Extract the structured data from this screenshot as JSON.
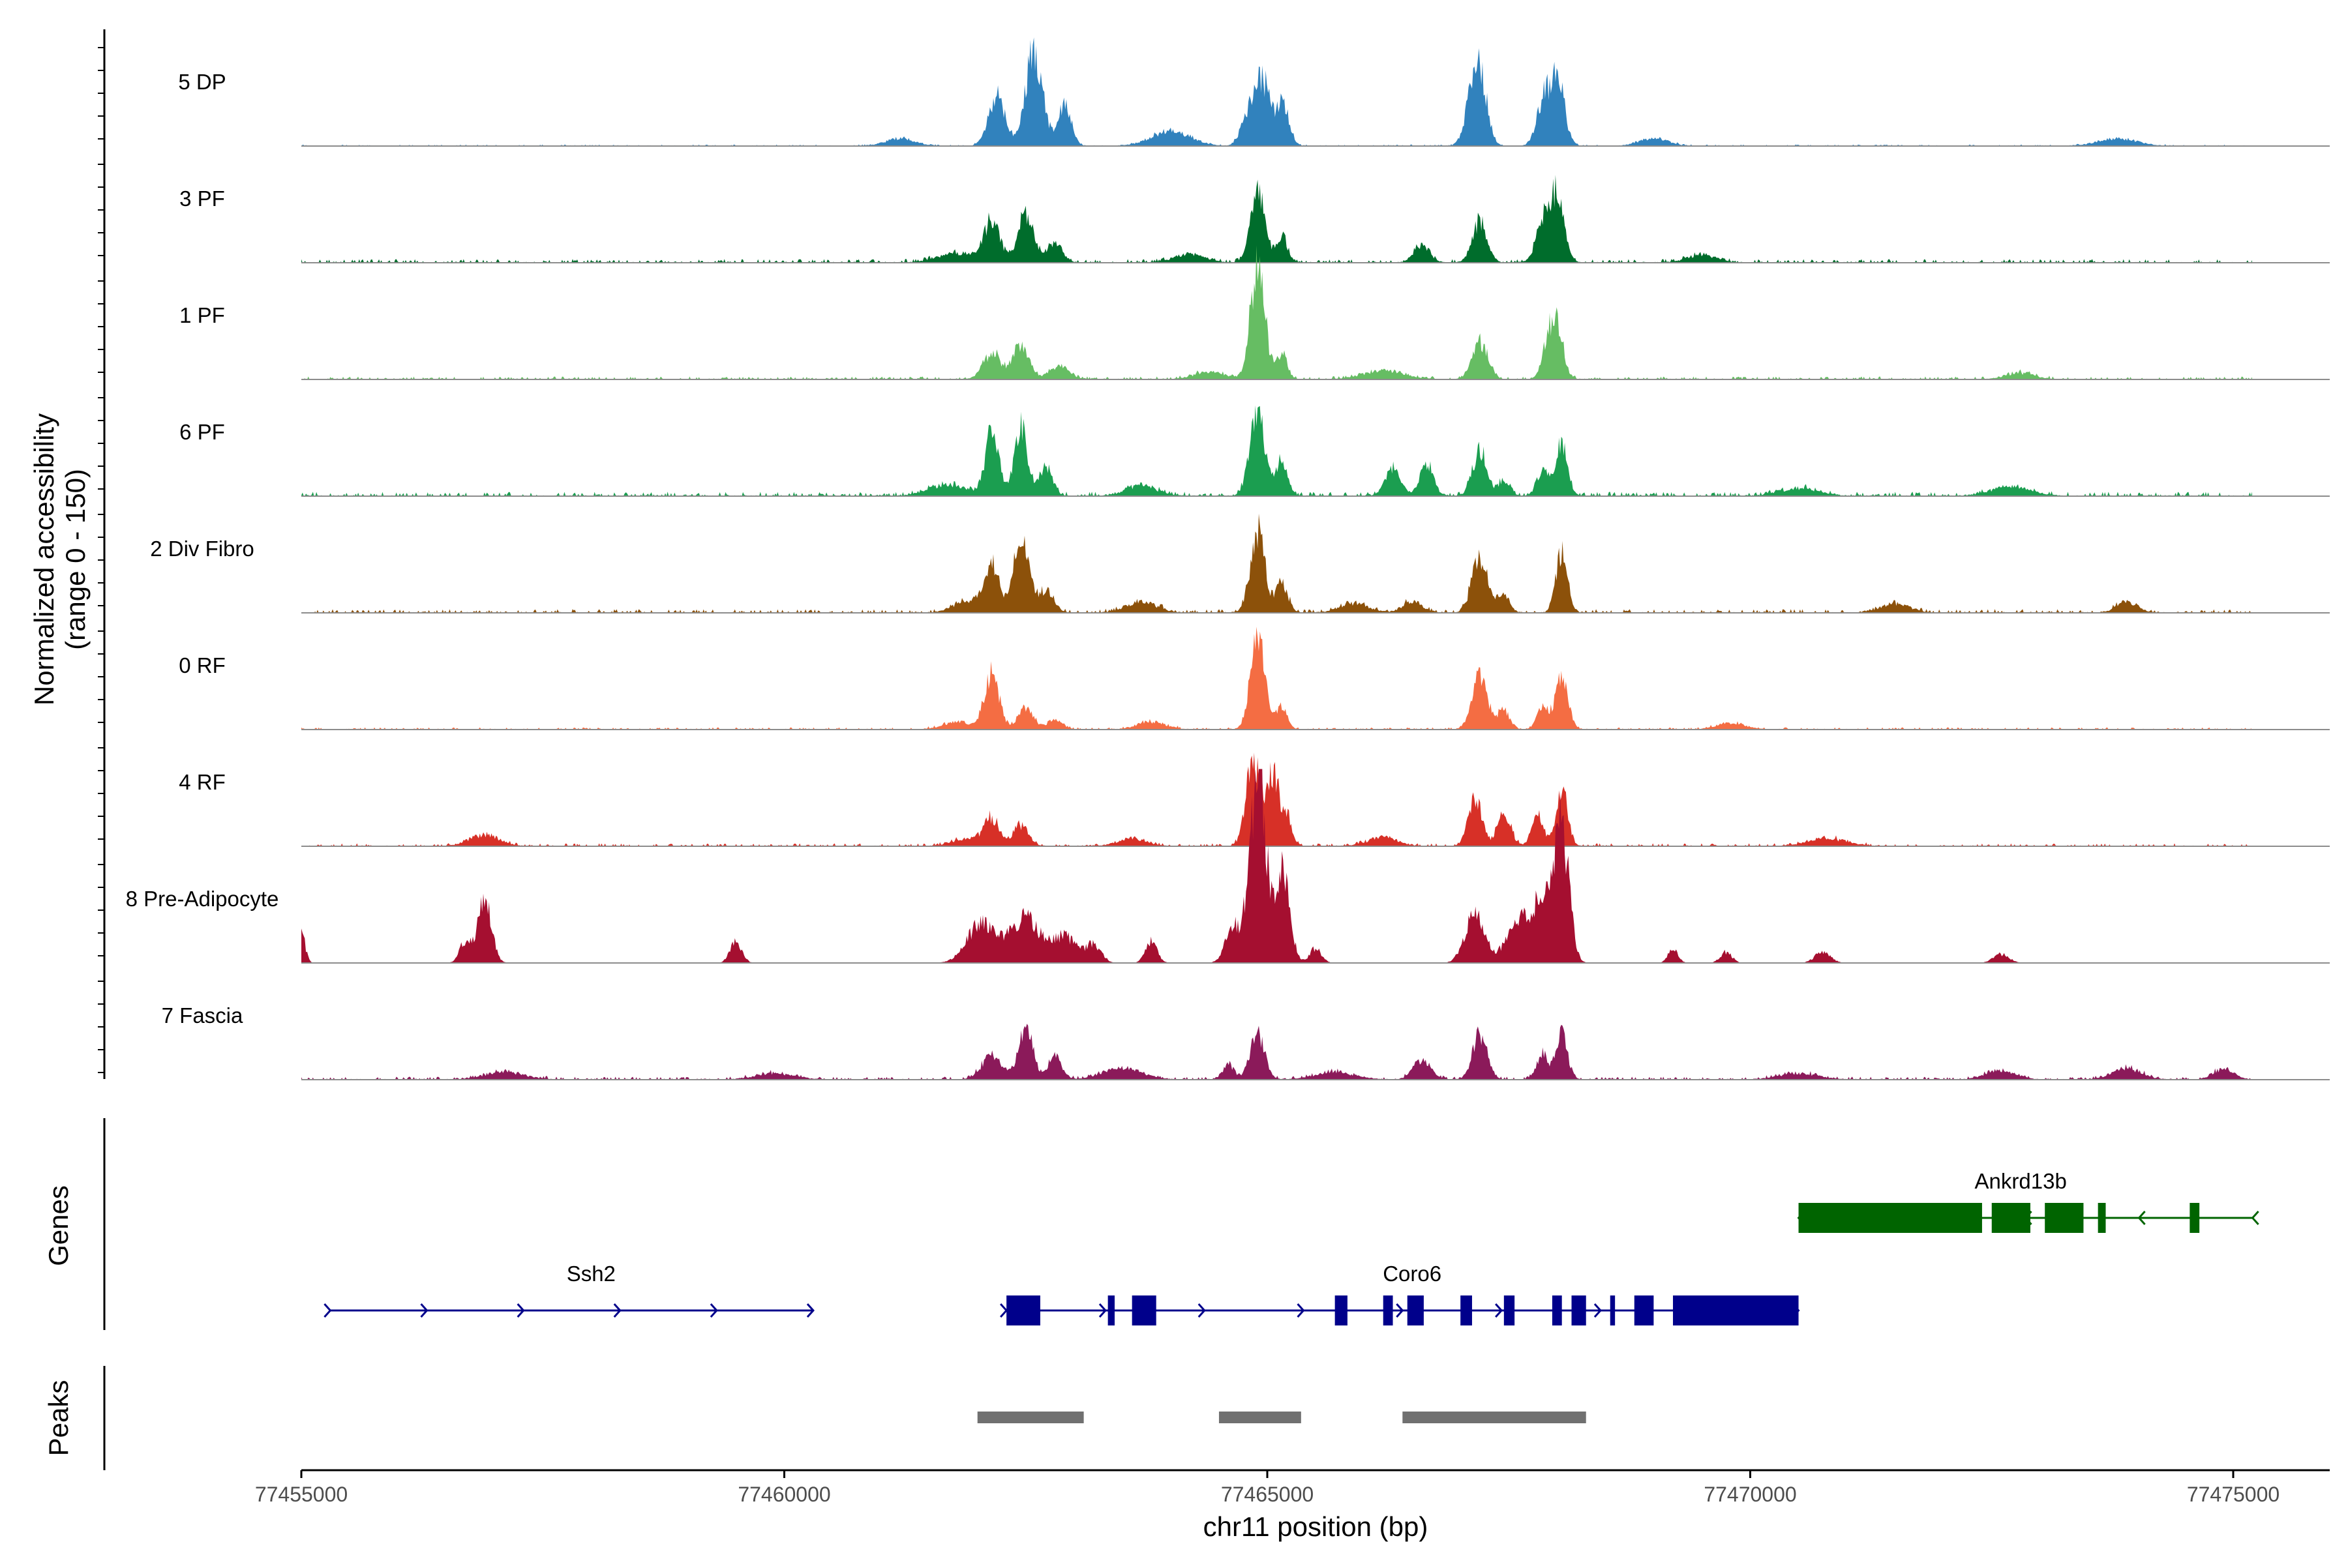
{
  "colors": {
    "baseline": "#8c8c8c",
    "axis": "#000000",
    "tick_text": "#4d4d4d",
    "gene_plus": "#00008b",
    "gene_minus": "#006400",
    "peak": "#707070"
  },
  "chart_data": {
    "type": "area",
    "title": "",
    "xlabel": "chr11 position (bp)",
    "ylabel": "Normalized accessibility\n(range 0 - 150)",
    "ylabel_line1": "Normalized accessibility",
    "ylabel_line2": "(range 0 - 150)",
    "ylim": [
      0,
      150
    ],
    "xlim": [
      77455000,
      77475000
    ],
    "x_ticks": [
      77455000,
      77460000,
      77465000,
      77470000,
      77475000
    ],
    "x_tick_labels": [
      "77455000",
      "77460000",
      "77465000",
      "77470000",
      "77475000"
    ],
    "data_start": 77455000,
    "data_end": 77475200,
    "tracks": [
      {
        "name": "5 DP",
        "color": "#3182bd",
        "peaks": [
          [
            77462200,
            68,
            85
          ],
          [
            77462550,
            100,
            75
          ],
          [
            77462650,
            60,
            65
          ],
          [
            77462900,
            55,
            70
          ],
          [
            77464800,
            45,
            70
          ],
          [
            77464950,
            85,
            70
          ],
          [
            77465150,
            60,
            70
          ],
          [
            77467200,
            95,
            75
          ],
          [
            77467100,
            40,
            70
          ],
          [
            77467850,
            55,
            70
          ],
          [
            77468000,
            90,
            75
          ]
        ],
        "noise": 2,
        "bumps": [
          [
            77464000,
            20,
            200
          ],
          [
            77461200,
            10,
            150
          ],
          [
            77473800,
            10,
            200
          ],
          [
            77469000,
            10,
            150
          ]
        ]
      },
      {
        "name": "3 PF",
        "color": "#006d2c",
        "peaks": [
          [
            77462150,
            55,
            80
          ],
          [
            77462500,
            65,
            85
          ],
          [
            77462800,
            25,
            80
          ],
          [
            77464900,
            95,
            75
          ],
          [
            77465150,
            35,
            60
          ],
          [
            77466600,
            25,
            80
          ],
          [
            77467200,
            55,
            75
          ],
          [
            77467850,
            55,
            70
          ],
          [
            77468000,
            90,
            70
          ]
        ],
        "noise": 5,
        "bumps": [
          [
            77461800,
            12,
            200
          ],
          [
            77464200,
            12,
            150
          ],
          [
            77469500,
            10,
            150
          ]
        ]
      },
      {
        "name": "1 PF",
        "color": "#66bd63",
        "peaks": [
          [
            77462150,
            35,
            90
          ],
          [
            77462450,
            45,
            85
          ],
          [
            77462850,
            18,
            100
          ],
          [
            77464900,
            150,
            75
          ],
          [
            77465150,
            35,
            55
          ],
          [
            77467200,
            50,
            80
          ],
          [
            77467900,
            40,
            60
          ],
          [
            77468000,
            70,
            65
          ]
        ],
        "noise": 4,
        "bumps": [
          [
            77466200,
            12,
            200
          ],
          [
            77464400,
            10,
            150
          ],
          [
            77472800,
            8,
            150
          ]
        ]
      },
      {
        "name": "6 PF",
        "color": "#1b9e50",
        "peaks": [
          [
            77462150,
            85,
            70
          ],
          [
            77462450,
            100,
            65
          ],
          [
            77462700,
            40,
            70
          ],
          [
            77464900,
            110,
            80
          ],
          [
            77465150,
            45,
            60
          ],
          [
            77466300,
            35,
            80
          ],
          [
            77466650,
            40,
            70
          ],
          [
            77467200,
            60,
            75
          ],
          [
            77467450,
            20,
            60
          ],
          [
            77467850,
            35,
            60
          ],
          [
            77468050,
            70,
            60
          ]
        ],
        "noise": 6,
        "bumps": [
          [
            77461700,
            15,
            200
          ],
          [
            77463700,
            15,
            150
          ],
          [
            77470500,
            10,
            200
          ],
          [
            77472700,
            12,
            200
          ]
        ]
      },
      {
        "name": "2 Div Fibro",
        "color": "#8c510a",
        "peaks": [
          [
            77462150,
            60,
            80
          ],
          [
            77462450,
            105,
            75
          ],
          [
            77462700,
            30,
            80
          ],
          [
            77464900,
            110,
            75
          ],
          [
            77465150,
            40,
            60
          ],
          [
            77466500,
            15,
            100
          ],
          [
            77467200,
            75,
            80
          ],
          [
            77467450,
            25,
            60
          ],
          [
            77468050,
            80,
            60
          ]
        ],
        "noise": 5,
        "bumps": [
          [
            77461900,
            15,
            150
          ],
          [
            77463700,
            15,
            150
          ],
          [
            77465900,
            12,
            150
          ],
          [
            77471500,
            12,
            150
          ],
          [
            77473900,
            15,
            100
          ]
        ]
      },
      {
        "name": "0 RF",
        "color": "#f46d43",
        "peaks": [
          [
            77462150,
            75,
            75
          ],
          [
            77462500,
            30,
            80
          ],
          [
            77462800,
            12,
            80
          ],
          [
            77464900,
            125,
            75
          ],
          [
            77465150,
            30,
            55
          ],
          [
            77467200,
            75,
            80
          ],
          [
            77467450,
            25,
            60
          ],
          [
            77467850,
            30,
            60
          ],
          [
            77468050,
            75,
            65
          ]
        ],
        "noise": 3,
        "bumps": [
          [
            77461800,
            10,
            150
          ],
          [
            77463800,
            10,
            150
          ],
          [
            77469800,
            8,
            150
          ]
        ]
      },
      {
        "name": "4 RF",
        "color": "#d73027",
        "peaks": [
          [
            77462150,
            35,
            80
          ],
          [
            77462450,
            28,
            80
          ],
          [
            77464850,
            120,
            70
          ],
          [
            77465050,
            100,
            65
          ],
          [
            77465200,
            40,
            55
          ],
          [
            77467150,
            65,
            70
          ],
          [
            77467450,
            45,
            70
          ],
          [
            77467800,
            40,
            60
          ],
          [
            77468050,
            80,
            60
          ]
        ],
        "noise": 4,
        "bumps": [
          [
            77456900,
            15,
            150
          ],
          [
            77461900,
            10,
            150
          ],
          [
            77463600,
            10,
            150
          ],
          [
            77466200,
            12,
            150
          ],
          [
            77470800,
            10,
            200
          ]
        ]
      },
      {
        "name": "8 Pre-Adipocyte",
        "color": "#a50f30",
        "peaks": [
          [
            77455000,
            40,
            40
          ],
          [
            77456900,
            85,
            70
          ],
          [
            77456700,
            30,
            60
          ],
          [
            77459500,
            30,
            60
          ],
          [
            77462050,
            55,
            150
          ],
          [
            77462500,
            60,
            150
          ],
          [
            77462900,
            35,
            120
          ],
          [
            77463200,
            25,
            80
          ],
          [
            77463800,
            30,
            60
          ],
          [
            77464650,
            50,
            80
          ],
          [
            77464900,
            260,
            80
          ],
          [
            77465150,
            120,
            80
          ],
          [
            77465500,
            20,
            60
          ],
          [
            77467150,
            70,
            100
          ],
          [
            77467600,
            60,
            120
          ],
          [
            77467850,
            85,
            90
          ],
          [
            77468050,
            180,
            75
          ],
          [
            77469200,
            20,
            50
          ],
          [
            77469750,
            15,
            60
          ],
          [
            77470750,
            15,
            80
          ],
          [
            77472600,
            12,
            80
          ]
        ],
        "noise": 0,
        "bumps": []
      },
      {
        "name": "7 Fascia",
        "color": "#8b1a5a",
        "peaks": [
          [
            77462150,
            35,
            100
          ],
          [
            77462500,
            70,
            75
          ],
          [
            77462800,
            30,
            70
          ],
          [
            77464900,
            60,
            75
          ],
          [
            77464600,
            20,
            60
          ],
          [
            77466600,
            25,
            90
          ],
          [
            77467200,
            60,
            75
          ],
          [
            77467850,
            35,
            60
          ],
          [
            77468050,
            60,
            60
          ]
        ],
        "noise": 4,
        "bumps": [
          [
            77457100,
            10,
            200
          ],
          [
            77459900,
            8,
            200
          ],
          [
            77463500,
            15,
            200
          ],
          [
            77465700,
            10,
            200
          ],
          [
            77470500,
            8,
            200
          ],
          [
            77472600,
            12,
            150
          ],
          [
            77473900,
            15,
            150
          ],
          [
            77474900,
            15,
            100
          ]
        ]
      }
    ],
    "genes": {
      "label": "Genes",
      "items": [
        {
          "name": "Ssh2",
          "strand": "+",
          "color": "#00008b",
          "start": 77455300,
          "end": 77460300,
          "row": 2,
          "label_pos": 77458000,
          "exons": []
        },
        {
          "name": "Coro6",
          "strand": "+",
          "color": "#00008b",
          "start": 77462300,
          "end": 77470500,
          "row": 2,
          "label_pos": 77466500,
          "exons": [
            [
              77462300,
              77462650
            ],
            [
              77463350,
              77463420
            ],
            [
              77463600,
              77463850
            ],
            [
              77465700,
              77465830
            ],
            [
              77466200,
              77466300
            ],
            [
              77466450,
              77466620
            ],
            [
              77467000,
              77467120
            ],
            [
              77467450,
              77467560
            ],
            [
              77467950,
              77468050
            ],
            [
              77468150,
              77468300
            ],
            [
              77468550,
              77468600
            ],
            [
              77468800,
              77469000
            ],
            [
              77469200,
              77470500
            ]
          ]
        },
        {
          "name": "Ankrd13b",
          "strand": "-",
          "color": "#006400",
          "start": 77470500,
          "end": 77475200,
          "row": 1,
          "label_pos": 77472800,
          "exons": [
            [
              77470500,
              77472400
            ],
            [
              77472500,
              77472900
            ],
            [
              77473050,
              77473450
            ],
            [
              77473600,
              77473680
            ],
            [
              77474550,
              77474650
            ]
          ]
        }
      ]
    },
    "peaks": {
      "label": "Peaks",
      "regions": [
        [
          77462000,
          77463100
        ],
        [
          77464500,
          77465350
        ],
        [
          77466400,
          77468300
        ]
      ]
    }
  }
}
